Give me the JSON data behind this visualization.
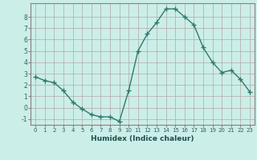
{
  "x": [
    0,
    1,
    2,
    3,
    4,
    5,
    6,
    7,
    8,
    9,
    10,
    11,
    12,
    13,
    14,
    15,
    16,
    17,
    18,
    19,
    20,
    21,
    22,
    23
  ],
  "y": [
    2.7,
    2.4,
    2.2,
    1.5,
    0.5,
    -0.1,
    -0.6,
    -0.8,
    -0.8,
    -1.2,
    1.5,
    5.0,
    6.5,
    7.5,
    8.7,
    8.7,
    8.0,
    7.3,
    5.3,
    4.0,
    3.1,
    3.3,
    2.5,
    1.4
  ],
  "xlabel": "Humidex (Indice chaleur)",
  "xlim": [
    -0.5,
    23.5
  ],
  "ylim": [
    -1.5,
    9.2
  ],
  "yticks": [
    -1,
    0,
    1,
    2,
    3,
    4,
    5,
    6,
    7,
    8
  ],
  "xticks": [
    0,
    1,
    2,
    3,
    4,
    5,
    6,
    7,
    8,
    9,
    10,
    11,
    12,
    13,
    14,
    15,
    16,
    17,
    18,
    19,
    20,
    21,
    22,
    23
  ],
  "line_color": "#2d7a6e",
  "bg_color": "#cceee8",
  "grid_color": "#b0a8a8",
  "spine_color": "#888080",
  "tick_label_color": "#2d6060",
  "xlabel_color": "#1a5050"
}
